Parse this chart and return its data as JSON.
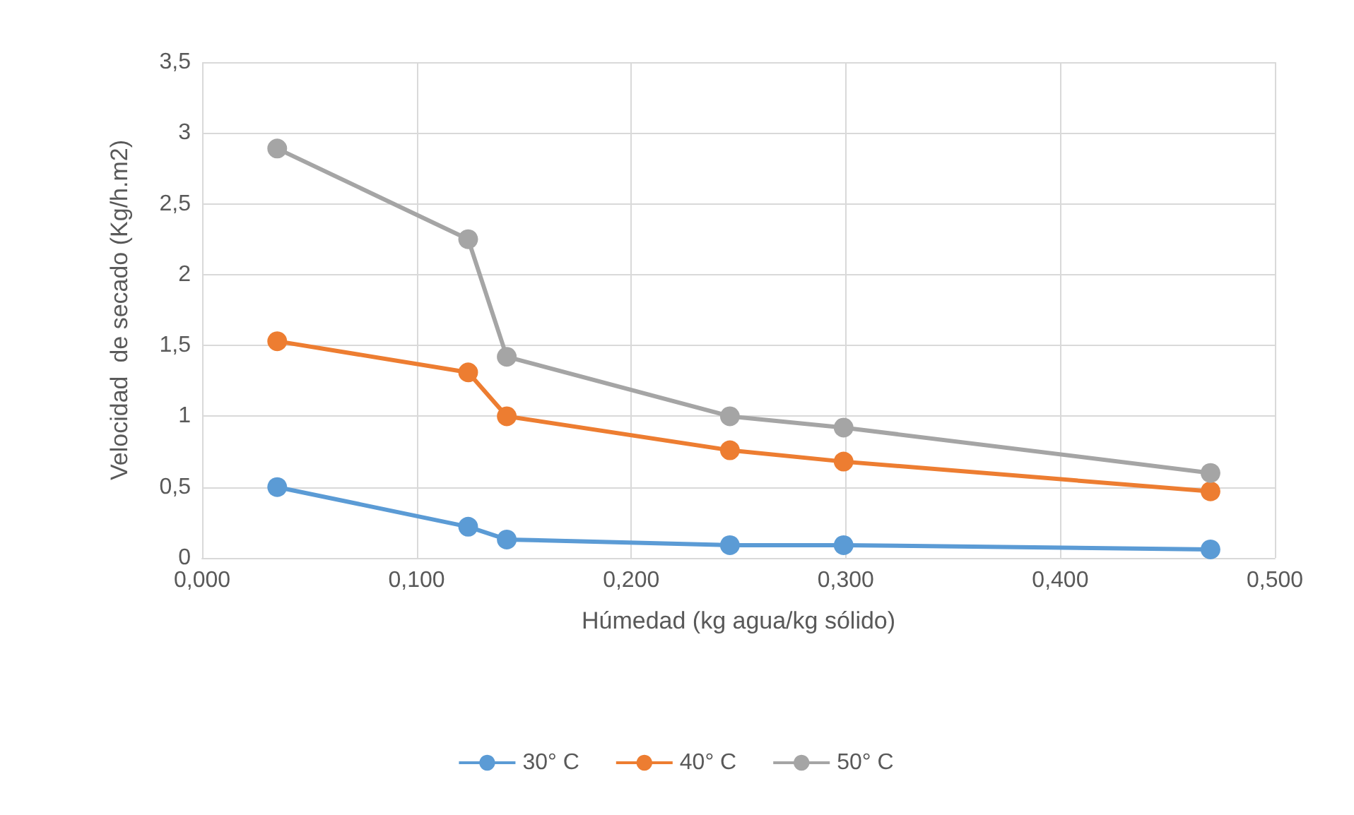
{
  "chart_data": {
    "type": "line",
    "xlabel": "Húmedad (kg agua/kg sólido)",
    "ylabel": "Velocidad  de secado (Kg/h.m2)",
    "x": [
      0.035,
      0.124,
      0.142,
      0.246,
      0.299,
      0.47
    ],
    "series": [
      {
        "name": "30° C",
        "color": "#5b9bd5",
        "values": [
          0.5,
          0.22,
          0.13,
          0.09,
          0.09,
          0.06
        ]
      },
      {
        "name": "40° C",
        "color": "#ed7d31",
        "values": [
          1.53,
          1.31,
          1.0,
          0.76,
          0.68,
          0.47
        ]
      },
      {
        "name": "50° C",
        "color": "#a5a5a5",
        "values": [
          2.89,
          2.25,
          1.42,
          1.0,
          0.92,
          0.6
        ]
      }
    ],
    "xlim": [
      0,
      0.5
    ],
    "xticks": [
      {
        "value": 0,
        "label": "0,000"
      },
      {
        "value": 0.1,
        "label": "0,100"
      },
      {
        "value": 0.2,
        "label": "0,200"
      },
      {
        "value": 0.3,
        "label": "0,300"
      },
      {
        "value": 0.4,
        "label": "0,400"
      },
      {
        "value": 0.5,
        "label": "0,500"
      }
    ],
    "ylim": [
      0,
      3.5
    ],
    "yticks": [
      0,
      {
        "value": 0.5,
        "label": "0,5"
      },
      1,
      {
        "value": 1.5,
        "label": "1,5"
      },
      2,
      {
        "value": 2.5,
        "label": "2,5"
      },
      3,
      {
        "value": 3.5,
        "label": "3,5"
      }
    ],
    "grid": true,
    "legend": "bottom",
    "marker": "circle",
    "line_style": "solid"
  }
}
